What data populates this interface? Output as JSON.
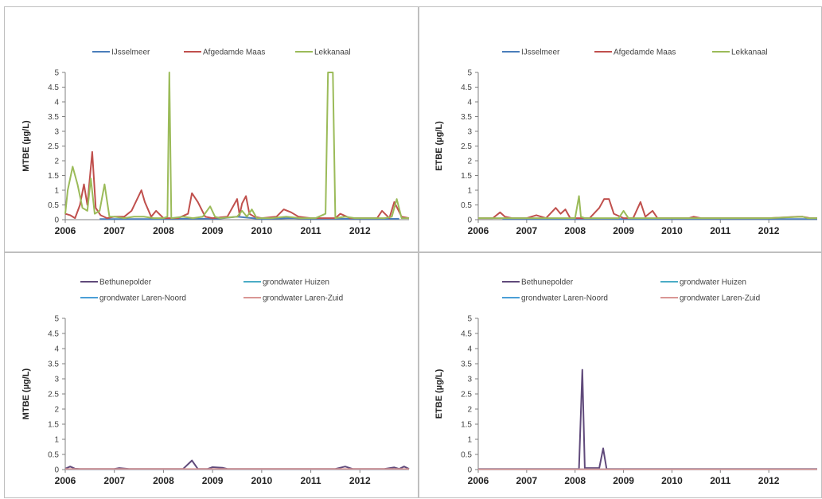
{
  "chart_data": [
    {
      "type": "line",
      "ylabel": "MTBE (µg/L)",
      "ylim": [
        0,
        5
      ],
      "yticks": [
        "0",
        "0.5",
        "1",
        "1.5",
        "2",
        "2.5",
        "3",
        "3.5",
        "4",
        "4.5",
        "5"
      ],
      "xticks": [
        "2006",
        "2007",
        "2008",
        "2009",
        "2010",
        "2011",
        "2012"
      ],
      "xlim": [
        2006,
        2013
      ],
      "legend": "top",
      "grid": false,
      "series": [
        {
          "name": "IJsselmeer",
          "color": "#4a7ebb",
          "x": [
            2006.7,
            2007.2,
            2007.8,
            2008.5,
            2009.1,
            2009.5,
            2010.0,
            2010.6,
            2011.1,
            2011.6,
            2012.2,
            2012.8
          ],
          "y": [
            0.02,
            0.02,
            0.02,
            0.03,
            0.03,
            0.1,
            0.02,
            0.05,
            0.02,
            0.03,
            0.02,
            0.03
          ]
        },
        {
          "name": "Afgedamde Maas",
          "color": "#c0504d",
          "x": [
            2006.0,
            2006.1,
            2006.2,
            2006.3,
            2006.38,
            2006.45,
            2006.55,
            2006.62,
            2006.72,
            2006.85,
            2007.0,
            2007.2,
            2007.35,
            2007.55,
            2007.62,
            2007.75,
            2007.85,
            2008.0,
            2008.3,
            2008.5,
            2008.58,
            2008.7,
            2008.85,
            2009.0,
            2009.3,
            2009.5,
            2009.55,
            2009.6,
            2009.68,
            2009.75,
            2009.85,
            2010.0,
            2010.3,
            2010.45,
            2010.6,
            2010.75,
            2011.0,
            2011.5,
            2011.6,
            2011.8,
            2012.0,
            2012.35,
            2012.45,
            2012.6,
            2012.7,
            2012.85,
            2013.0
          ],
          "y": [
            0.2,
            0.15,
            0.05,
            0.5,
            1.2,
            0.5,
            2.3,
            0.4,
            0.15,
            0.05,
            0.1,
            0.1,
            0.3,
            1.0,
            0.6,
            0.1,
            0.3,
            0.05,
            0.05,
            0.2,
            0.9,
            0.6,
            0.1,
            0.05,
            0.1,
            0.7,
            0.15,
            0.55,
            0.8,
            0.2,
            0.1,
            0.05,
            0.1,
            0.35,
            0.25,
            0.1,
            0.05,
            0.05,
            0.2,
            0.05,
            0.05,
            0.05,
            0.3,
            0.05,
            0.6,
            0.1,
            0.05
          ]
        },
        {
          "name": "Lekkanaal",
          "color": "#9bbb59",
          "x": [
            2006.0,
            2006.05,
            2006.15,
            2006.25,
            2006.35,
            2006.45,
            2006.52,
            2006.6,
            2006.7,
            2006.8,
            2006.9,
            2007.0,
            2007.2,
            2007.4,
            2007.6,
            2007.8,
            2008.0,
            2008.08,
            2008.12,
            2008.16,
            2008.4,
            2008.6,
            2008.8,
            2008.95,
            2009.05,
            2009.15,
            2009.5,
            2009.6,
            2009.7,
            2009.8,
            2009.9,
            2010.2,
            2010.5,
            2010.8,
            2011.1,
            2011.3,
            2011.35,
            2011.4,
            2011.45,
            2011.5,
            2011.7,
            2011.9,
            2012.2,
            2012.5,
            2012.65,
            2012.75,
            2012.85,
            2013.0
          ],
          "y": [
            0.2,
            1.0,
            1.8,
            1.2,
            0.4,
            0.3,
            1.4,
            0.2,
            0.3,
            1.2,
            0.1,
            0.1,
            0.05,
            0.1,
            0.1,
            0.05,
            0.05,
            0.1,
            5.0,
            0.05,
            0.1,
            0.05,
            0.1,
            0.45,
            0.1,
            0.05,
            0.1,
            0.3,
            0.1,
            0.35,
            0.05,
            0.05,
            0.1,
            0.05,
            0.05,
            0.2,
            5.0,
            5.0,
            5.0,
            0.05,
            0.1,
            0.05,
            0.05,
            0.05,
            0.1,
            0.7,
            0.05,
            0.05
          ]
        }
      ],
      "legend_labels": [
        "IJsselmeer",
        "Afgedamde Maas",
        "Lekkanaal"
      ]
    },
    {
      "type": "line",
      "ylabel": "ETBE (µg/L)",
      "ylim": [
        0,
        5
      ],
      "yticks": [
        "0",
        "0.5",
        "1",
        "1.5",
        "2",
        "2.5",
        "3",
        "3.5",
        "4",
        "4.5",
        "5"
      ],
      "xticks": [
        "2006",
        "2007",
        "2008",
        "2009",
        "2010",
        "2011",
        "2012"
      ],
      "xlim": [
        2006,
        2013
      ],
      "legend": "top",
      "grid": false,
      "series": [
        {
          "name": "IJsselmeer",
          "color": "#4a7ebb",
          "x": [
            2006.5,
            2007.0,
            2007.5,
            2008.0,
            2008.5,
            2009.0,
            2009.5,
            2010.0,
            2010.5,
            2011.0,
            2011.5,
            2012.0,
            2012.5,
            2013.0
          ],
          "y": [
            0.02,
            0.02,
            0.02,
            0.02,
            0.03,
            0.02,
            0.02,
            0.02,
            0.02,
            0.02,
            0.02,
            0.02,
            0.02,
            0.02
          ]
        },
        {
          "name": "Afgedamde Maas",
          "color": "#c0504d",
          "x": [
            2006.0,
            2006.3,
            2006.45,
            2006.55,
            2006.7,
            2007.0,
            2007.2,
            2007.4,
            2007.6,
            2007.7,
            2007.8,
            2007.9,
            2008.0,
            2008.3,
            2008.5,
            2008.6,
            2008.7,
            2008.8,
            2009.0,
            2009.2,
            2009.35,
            2009.45,
            2009.6,
            2009.7,
            2010.0,
            2010.35,
            2010.45,
            2010.6,
            2011.0,
            2012.0,
            2012.6,
            2012.7,
            2012.85,
            2013.0
          ],
          "y": [
            0.05,
            0.05,
            0.25,
            0.1,
            0.05,
            0.05,
            0.15,
            0.05,
            0.4,
            0.2,
            0.35,
            0.05,
            0.05,
            0.05,
            0.4,
            0.7,
            0.7,
            0.2,
            0.05,
            0.05,
            0.6,
            0.1,
            0.3,
            0.05,
            0.05,
            0.05,
            0.1,
            0.05,
            0.05,
            0.05,
            0.1,
            0.1,
            0.05,
            0.05
          ]
        },
        {
          "name": "Lekkanaal",
          "color": "#9bbb59",
          "x": [
            2006.0,
            2006.5,
            2007.0,
            2007.5,
            2008.0,
            2008.08,
            2008.12,
            2008.2,
            2008.5,
            2008.9,
            2009.0,
            2009.1,
            2009.5,
            2010.0,
            2011.0,
            2012.0,
            2012.7,
            2012.8,
            2013.0
          ],
          "y": [
            0.05,
            0.05,
            0.05,
            0.05,
            0.05,
            0.8,
            0.1,
            0.05,
            0.05,
            0.05,
            0.3,
            0.05,
            0.05,
            0.05,
            0.05,
            0.05,
            0.1,
            0.05,
            0.05
          ]
        }
      ],
      "legend_labels": [
        "IJsselmeer",
        "Afgedamde Maas",
        "Lekkanaal"
      ]
    },
    {
      "type": "line",
      "ylabel": "MTBE (µg/L)",
      "ylim": [
        0,
        5
      ],
      "yticks": [
        "0",
        "0.5",
        "1",
        "1.5",
        "2",
        "2.5",
        "3",
        "3.5",
        "4",
        "4.5",
        "5"
      ],
      "xticks": [
        "2006",
        "2007",
        "2008",
        "2009",
        "2010",
        "2011",
        "2012"
      ],
      "xlim": [
        2006,
        2013
      ],
      "legend": "top",
      "grid": false,
      "series": [
        {
          "name": "Bethunepolder",
          "color": "#604a7b",
          "x": [
            2006.0,
            2006.1,
            2006.2,
            2006.3,
            2006.6,
            2007.0,
            2007.1,
            2007.3,
            2007.6,
            2008.0,
            2008.4,
            2008.58,
            2008.7,
            2008.9,
            2009.0,
            2009.2,
            2009.3,
            2009.6,
            2010.0,
            2010.5,
            2011.0,
            2011.5,
            2011.7,
            2011.85,
            2012.0,
            2012.5,
            2012.7,
            2012.8,
            2012.9,
            2013.0
          ],
          "y": [
            0.03,
            0.1,
            0.03,
            0.02,
            0.02,
            0.02,
            0.05,
            0.02,
            0.02,
            0.02,
            0.02,
            0.3,
            0.02,
            0.02,
            0.08,
            0.06,
            0.02,
            0.02,
            0.02,
            0.02,
            0.02,
            0.02,
            0.1,
            0.02,
            0.02,
            0.02,
            0.07,
            0.02,
            0.1,
            0.02
          ]
        },
        {
          "name": "grondwater Huizen",
          "color": "#4bacc6",
          "x": [
            2006.0,
            2013.0
          ],
          "y": [
            0.01,
            0.01
          ]
        },
        {
          "name": "grondwater Laren-Noord",
          "color": "#4a9ed6",
          "x": [
            2006.0,
            2013.0
          ],
          "y": [
            0.01,
            0.01
          ]
        },
        {
          "name": "grondwater Laren-Zuid",
          "color": "#d99694",
          "x": [
            2006.0,
            2013.0
          ],
          "y": [
            0.015,
            0.015
          ]
        }
      ],
      "legend_labels": [
        "Bethunepolder",
        "grondwater Huizen",
        "grondwater Laren-Noord",
        "grondwater Laren-Zuid"
      ]
    },
    {
      "type": "line",
      "ylabel": "ETBE (µg/L)",
      "ylim": [
        0,
        5
      ],
      "yticks": [
        "0",
        "0.5",
        "1",
        "1.5",
        "2",
        "2.5",
        "3",
        "3.5",
        "4",
        "4.5",
        "5"
      ],
      "xticks": [
        "2006",
        "2007",
        "2008",
        "2009",
        "2010",
        "2011",
        "2012"
      ],
      "xlim": [
        2006,
        2013
      ],
      "legend": "top",
      "grid": false,
      "series": [
        {
          "name": "Bethunepolder",
          "color": "#604a7b",
          "x": [
            2006.0,
            2007.0,
            2008.0,
            2008.08,
            2008.15,
            2008.2,
            2008.4,
            2008.5,
            2008.58,
            2008.65,
            2009.0,
            2010.0,
            2011.0,
            2012.0,
            2013.0
          ],
          "y": [
            0.02,
            0.02,
            0.02,
            0.02,
            3.3,
            0.05,
            0.05,
            0.05,
            0.7,
            0.02,
            0.02,
            0.02,
            0.02,
            0.02,
            0.02
          ]
        },
        {
          "name": "grondwater Huizen",
          "color": "#4bacc6",
          "x": [
            2006.0,
            2013.0
          ],
          "y": [
            0.01,
            0.01
          ]
        },
        {
          "name": "grondwater Laren-Noord",
          "color": "#4a9ed6",
          "x": [
            2006.0,
            2013.0
          ],
          "y": [
            0.01,
            0.01
          ]
        },
        {
          "name": "grondwater Laren-Zuid",
          "color": "#d99694",
          "x": [
            2006.0,
            2013.0
          ],
          "y": [
            0.01,
            0.01
          ]
        }
      ],
      "legend_labels": [
        "Bethunepolder",
        "grondwater Huizen",
        "grondwater Laren-Noord",
        "grondwater Laren-Zuid"
      ]
    }
  ]
}
